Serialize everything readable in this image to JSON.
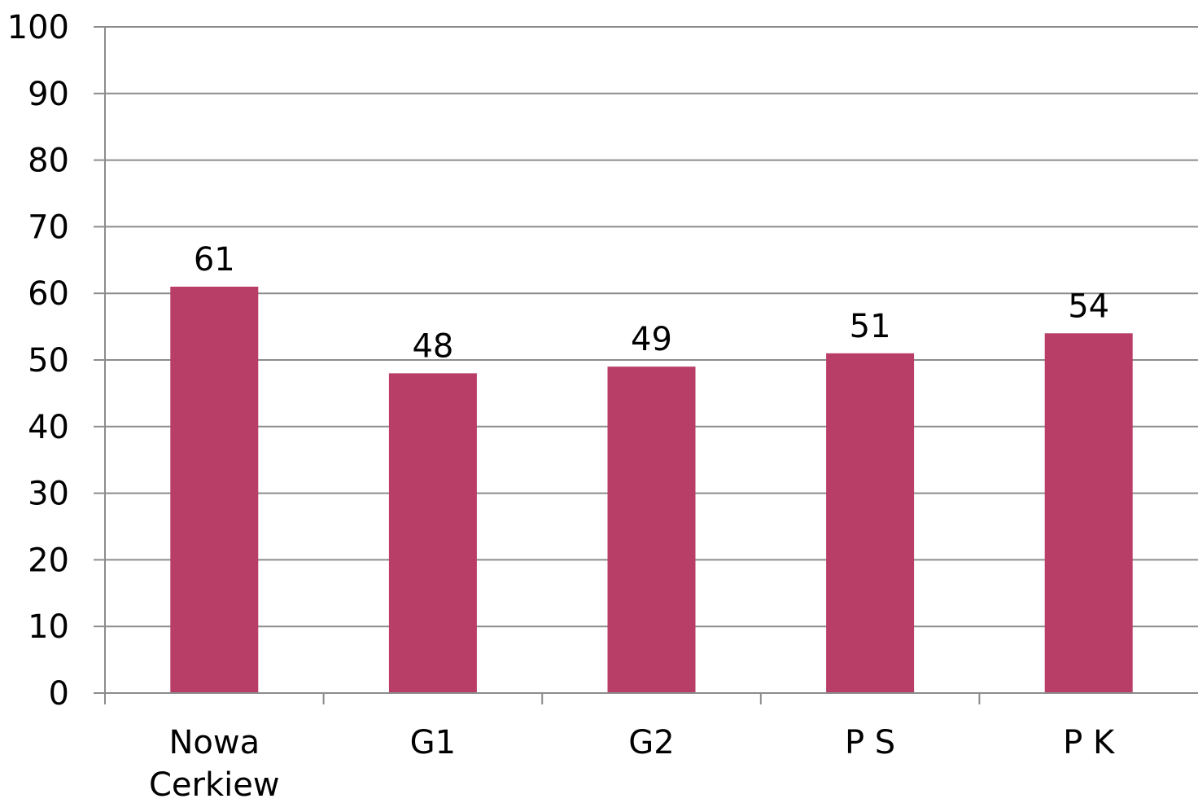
{
  "chart_data": {
    "type": "bar",
    "categories": [
      "Nowa Cerkiew",
      "G1",
      "G2",
      "P S",
      "P K"
    ],
    "category_lines": [
      [
        "Nowa",
        "Cerkiew"
      ],
      [
        "G1"
      ],
      [
        "G2"
      ],
      [
        "P S"
      ],
      [
        "P K"
      ]
    ],
    "values": [
      61,
      48,
      49,
      51,
      54
    ],
    "data_labels": [
      "61",
      "48",
      "49",
      "51",
      "54"
    ],
    "title": "",
    "xlabel": "",
    "ylabel": "",
    "ylim": [
      0,
      100
    ],
    "yticks": [
      0,
      10,
      20,
      30,
      40,
      50,
      60,
      70,
      80,
      90,
      100
    ],
    "grid": true,
    "legend": "none",
    "colors": {
      "bar": "#B83D67",
      "grid": "#8C8C8C",
      "axis": "#8C8C8C",
      "text": "#000000"
    }
  }
}
